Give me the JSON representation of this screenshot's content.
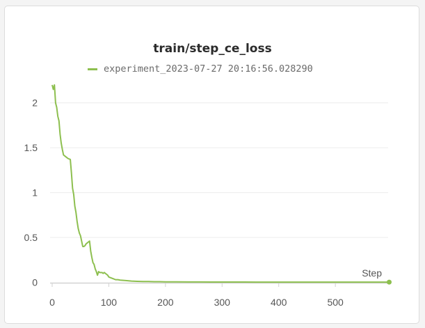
{
  "chart_data": {
    "type": "line",
    "title": "train/step_ce_loss",
    "xlabel": "Step",
    "ylabel": "",
    "xlim": [
      0,
      595
    ],
    "ylim": [
      0,
      2.25
    ],
    "x_ticks": [
      0,
      100,
      200,
      300,
      400,
      500
    ],
    "y_ticks": [
      0,
      0.5,
      1,
      1.5,
      2
    ],
    "x_tick_labels": [
      "0",
      "100",
      "200",
      "300",
      "400",
      "500"
    ],
    "y_tick_labels": [
      "0",
      "0.5",
      "1",
      "1.5",
      "2"
    ],
    "grid": "horizontal",
    "legend_position": "top",
    "series": [
      {
        "name": "experiment_2023-07-27 20:16:56.028290",
        "color": "#8dbf4f",
        "x": [
          0,
          2,
          4,
          6,
          8,
          10,
          12,
          14,
          16,
          18,
          20,
          24,
          28,
          32,
          34,
          36,
          38,
          40,
          42,
          44,
          46,
          48,
          50,
          52,
          54,
          56,
          58,
          60,
          62,
          64,
          66,
          68,
          70,
          72,
          74,
          76,
          78,
          80,
          82,
          84,
          86,
          88,
          90,
          92,
          94,
          96,
          98,
          100,
          104,
          108,
          112,
          116,
          120,
          130,
          140,
          150,
          160,
          170,
          180,
          190,
          200,
          220,
          240,
          260,
          280,
          300,
          320,
          340,
          360,
          380,
          400,
          420,
          440,
          460,
          480,
          500,
          520,
          540,
          560,
          580,
          595
        ],
        "values": [
          2.2,
          2.15,
          2.2,
          2.0,
          1.95,
          1.85,
          1.8,
          1.65,
          1.55,
          1.48,
          1.42,
          1.4,
          1.38,
          1.37,
          1.22,
          1.05,
          0.98,
          0.85,
          0.78,
          0.68,
          0.6,
          0.55,
          0.52,
          0.46,
          0.4,
          0.4,
          0.41,
          0.43,
          0.44,
          0.45,
          0.46,
          0.35,
          0.28,
          0.22,
          0.2,
          0.15,
          0.12,
          0.08,
          0.12,
          0.11,
          0.11,
          0.11,
          0.1,
          0.11,
          0.1,
          0.09,
          0.08,
          0.06,
          0.05,
          0.04,
          0.03,
          0.03,
          0.025,
          0.02,
          0.015,
          0.012,
          0.01,
          0.01,
          0.008,
          0.008,
          0.006,
          0.006,
          0.005,
          0.005,
          0.004,
          0.004,
          0.004,
          0.004,
          0.003,
          0.003,
          0.003,
          0.003,
          0.003,
          0.003,
          0.003,
          0.003,
          0.003,
          0.003,
          0.003,
          0.003,
          0.003
        ]
      }
    ]
  }
}
